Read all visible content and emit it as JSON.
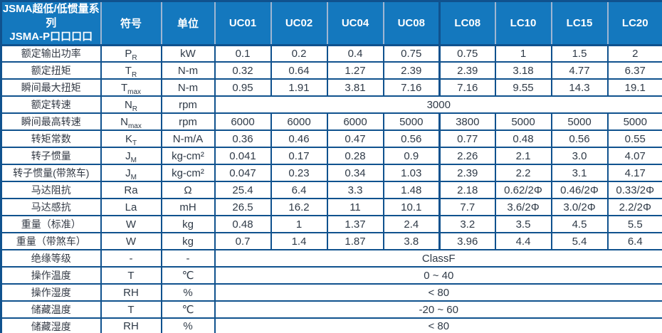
{
  "title": {
    "line1": "JSMA超低/低惯量系列",
    "line2": "JSMA-P口口口口"
  },
  "header": {
    "symbol": "符号",
    "unit": "单位",
    "models": [
      "UC01",
      "UC02",
      "UC04",
      "UC08",
      "LC08",
      "LC10",
      "LC15",
      "LC20"
    ]
  },
  "colors": {
    "header_bg": "#1478be",
    "border": "#10528e",
    "header_divider": "#9fb6d2",
    "header_text": "#ffffff",
    "body_text": "#2f3a47"
  },
  "rows": [
    {
      "label": "额定输出功率",
      "sym": "P",
      "sub": "R",
      "unit": "kW",
      "values": [
        "0.1",
        "0.2",
        "0.4",
        "0.75",
        "0.75",
        "1",
        "1.5",
        "2"
      ]
    },
    {
      "label": "额定扭矩",
      "sym": "T",
      "sub": "R",
      "unit": "N-m",
      "values": [
        "0.32",
        "0.64",
        "1.27",
        "2.39",
        "2.39",
        "3.18",
        "4.77",
        "6.37"
      ]
    },
    {
      "label": "瞬间最大扭矩",
      "sym": "T",
      "sub": "max",
      "unit": "N-m",
      "values": [
        "0.95",
        "1.91",
        "3.81",
        "7.16",
        "7.16",
        "9.55",
        "14.3",
        "19.1"
      ]
    },
    {
      "label": "额定转速",
      "sym": "N",
      "sub": "R",
      "unit": "rpm",
      "merged": "3000"
    },
    {
      "label": "瞬间最高转速",
      "sym": "N",
      "sub": "max",
      "unit": "rpm",
      "values": [
        "6000",
        "6000",
        "6000",
        "5000",
        "3800",
        "5000",
        "5000",
        "5000"
      ]
    },
    {
      "label": "转矩常数",
      "sym": "K",
      "sub": "T",
      "unit": "N-m/A",
      "values": [
        "0.36",
        "0.46",
        "0.47",
        "0.56",
        "0.77",
        "0.48",
        "0.56",
        "0.55"
      ]
    },
    {
      "label": "转子惯量",
      "sym": "J",
      "sub": "M",
      "unit": "kg-cm²",
      "values": [
        "0.041",
        "0.17",
        "0.28",
        "0.9",
        "2.26",
        "2.1",
        "3.0",
        "4.07"
      ]
    },
    {
      "label": "转子惯量(带煞车)",
      "sym": "J",
      "sub": "M",
      "unit": "kg-cm²",
      "values": [
        "0.047",
        "0.23",
        "0.34",
        "1.03",
        "2.39",
        "2.2",
        "3.1",
        "4.17"
      ]
    },
    {
      "label": "马达阻抗",
      "sym": "Ra",
      "sub": "",
      "unit": "Ω",
      "values": [
        "25.4",
        "6.4",
        "3.3",
        "1.48",
        "2.18",
        "0.62/2Φ",
        "0.46/2Φ",
        "0.33/2Φ"
      ]
    },
    {
      "label": "马达感抗",
      "sym": "La",
      "sub": "",
      "unit": "mH",
      "values": [
        "26.5",
        "16.2",
        "11",
        "10.1",
        "7.7",
        "3.6/2Φ",
        "3.0/2Φ",
        "2.2/2Φ"
      ]
    },
    {
      "label": "重量（标准）",
      "sym": "W",
      "sub": "",
      "unit": "kg",
      "values": [
        "0.48",
        "1",
        "1.37",
        "2.4",
        "3.2",
        "3.5",
        "4.5",
        "5.5"
      ]
    },
    {
      "label": "重量（带煞车）",
      "sym": "W",
      "sub": "",
      "unit": "kg",
      "values": [
        "0.7",
        "1.4",
        "1.87",
        "3.8",
        "3.96",
        "4.4",
        "5.4",
        "6.4"
      ]
    },
    {
      "label": "绝缘等级",
      "sym": "-",
      "sub": "",
      "unit": "-",
      "merged": "ClassF"
    },
    {
      "label": "操作温度",
      "sym": "T",
      "sub": "",
      "unit": "℃",
      "merged": "0 ~ 40"
    },
    {
      "label": "操作湿度",
      "sym": "RH",
      "sub": "",
      "unit": "%",
      "merged": "< 80"
    },
    {
      "label": "储藏温度",
      "sym": "T",
      "sub": "",
      "unit": "℃",
      "merged": "-20 ~ 60"
    },
    {
      "label": "储藏湿度",
      "sym": "RH",
      "sub": "",
      "unit": "%",
      "merged": "< 80"
    }
  ]
}
